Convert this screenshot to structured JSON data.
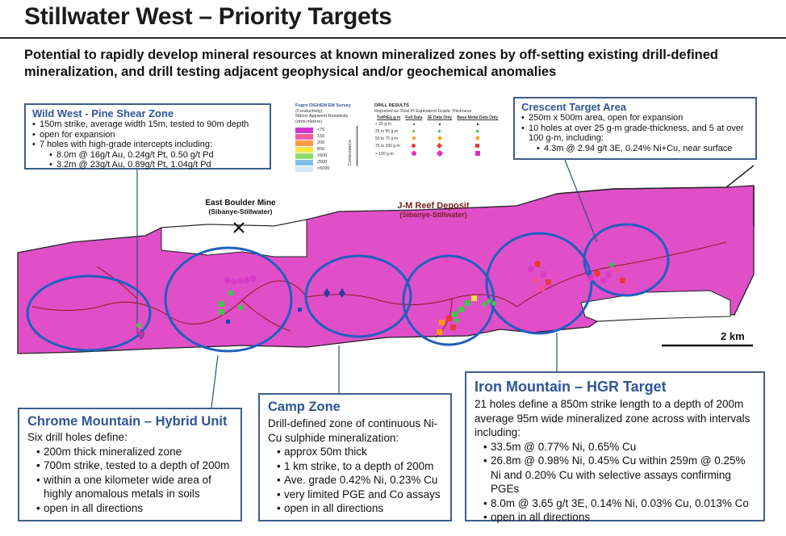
{
  "header": {
    "title": "Stillwater West – Priority Targets",
    "subtitle": "Potential to rapidly develop mineral resources at known mineralized zones by off-setting existing drill-defined mineralization, and drill testing adjacent geophysical and/or geochemical anomalies"
  },
  "boxes": {
    "wild_west": {
      "title": "Wild West - Pine Shear Zone",
      "items": [
        "150m strike, average width 15m, tested to 90m depth",
        "open for expansion",
        "7  holes with high-grade intercepts including:"
      ],
      "sub_items": [
        "8.0m @ 16g/t Au, 0.24g/t Pt, 0.50 g/t Pd",
        "3.2m @ 23g/t Au, 0.89g/t Pt, 1.04g/t Pd"
      ]
    },
    "crescent": {
      "title": "Crescent Target Area",
      "items": [
        "250m x 500m area, open for expansion",
        "10 holes at over 25 g-m grade-thickness, and 5 at over 100 g-m, including:"
      ],
      "sub_items": [
        "4.3m @ 2.94 g/t 3E, 0.24% Ni+Cu, near surface"
      ]
    },
    "chrome": {
      "title": "Chrome Mountain – Hybrid Unit",
      "intro": "Six drill holes define:",
      "items": [
        "200m thick mineralized zone",
        "700m strike, tested to a depth of 200m",
        "within a one kilometer wide area of highly anomalous metals in soils",
        "open in all directions"
      ]
    },
    "camp": {
      "title": "Camp Zone",
      "intro": "Drill-defined zone of continuous Ni-Cu sulphide mineralization:",
      "items": [
        "approx 50m thick",
        "1 km strike, to a depth of 200m",
        "Ave. grade 0.42% Ni, 0.23% Cu",
        "very limited PGE and Co assays",
        "open in all directions"
      ]
    },
    "iron": {
      "title": "Iron Mountain – HGR Target",
      "intro": "21 holes define a 850m strike length to a depth of 200m average 95m wide mineralized zone across with intervals including:",
      "items": [
        "33.5m @ 0.77% Ni, 0.65% Cu",
        "26.8m @ 0.98% Ni, 0.45% Cu within 259m @ 0.25% Ni and 0.20% Cu with selective assays confirming PGEs",
        "8.0m @ 3.65 g/t 3E, 0.14% Ni, 0.03% Cu, 0.013% Co",
        "open in all directions"
      ]
    }
  },
  "map_labels": {
    "east_boulder": "East Boulder Mine",
    "east_boulder_owner": "(Sibanye-Stillwater)",
    "jm_reef": "J-M Reef Deposit",
    "jm_owner": "(Sibanye-Stillwater)",
    "scale": "2 km"
  },
  "legend": {
    "em_title": "Fugro DIGHEM EM Survey",
    "em_sub1": "(Conductivity)",
    "em_sub2": "56kHz Apparent Resistivity",
    "em_sub3": "(ohm-meters)",
    "em_values": [
      "<75",
      "150",
      "200",
      "800",
      "1500",
      "2500",
      ">5000"
    ],
    "em_colors": [
      "#d238d0",
      "#f55ba0",
      "#ff9a4a",
      "#f6e64a",
      "#8fdc6a",
      "#7ec0e8",
      "#d7e6f3"
    ],
    "conductance_label": "Conductance",
    "drill_title": "DRILL RESULTS",
    "drill_sub": "Reported as Total Pt Equivalent Grade-Thickness",
    "col_headers": [
      "TotPtEq g-m",
      "Full Data",
      "3E Data Only",
      "Base Metal Data Only"
    ],
    "rows": [
      "< 25 g-m",
      "25 to 50 g-m",
      "50 to 75 g-m",
      "75 to 100 g-m",
      "> 100 g-m"
    ]
  }
}
